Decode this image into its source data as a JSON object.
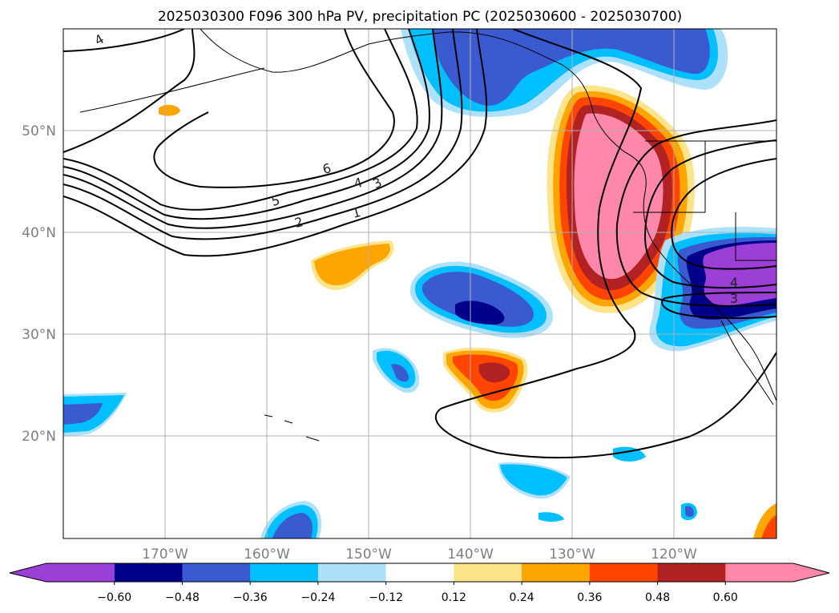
{
  "chart_data": {
    "type": "contour map",
    "title": "2025030300 F096 300 hPa PV, precipitation PC (2025030600 - 2025030700)",
    "lat_range": [
      10,
      60
    ],
    "lon_range": [
      -180,
      -110
    ],
    "lat_ticks": [
      "50°N",
      "40°N",
      "30°N",
      "20°N"
    ],
    "lon_ticks": [
      "170°W",
      "160°W",
      "150°W",
      "140°W",
      "130°W",
      "120°W"
    ],
    "grid": true,
    "colorbar": {
      "orientation": "horizontal",
      "extend": "both",
      "levels": [
        "−0.60",
        "−0.48",
        "−0.36",
        "−0.24",
        "−0.12",
        "0.12",
        "0.24",
        "0.36",
        "0.48",
        "0.60"
      ],
      "colors": [
        "#9b3fd6",
        "#00008b",
        "#3a5bd0",
        "#00bfff",
        "#ade0fa",
        "#ffffff",
        "#fde38a",
        "#ffa500",
        "#ff4500",
        "#b22222",
        "#ff88aa"
      ]
    },
    "pv_contour_labels": [
      "4",
      "6",
      "5",
      "4",
      "3",
      "2",
      "1",
      "4",
      "3"
    ]
  }
}
